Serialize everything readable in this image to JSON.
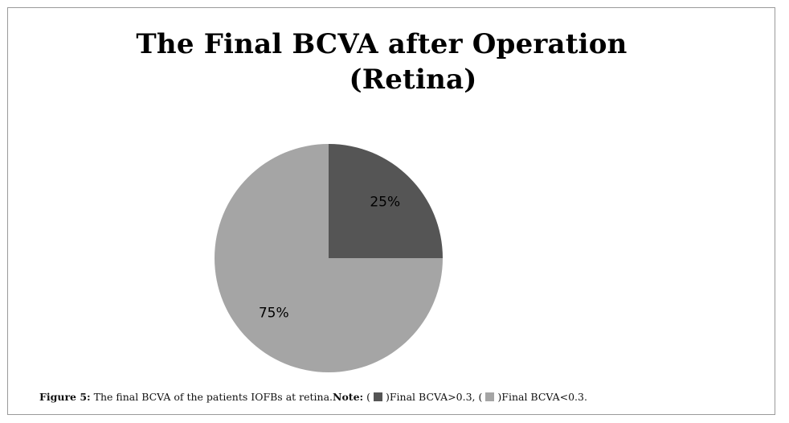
{
  "chart_data": {
    "type": "pie",
    "title_line1": "The Final BCVA after Operation",
    "title_line2": "(Retina)",
    "slices": [
      {
        "label": "25%",
        "value": 25,
        "color": "#555555"
      },
      {
        "label": "75%",
        "value": 75,
        "color": "#a5a5a5"
      }
    ]
  },
  "caption": {
    "figure_label": "Figure 5:",
    "text": " The final BCVA of the patients IOFBs at retina.",
    "note_label": "Note:",
    "open_paren_1": " (",
    "legend_1": ")Final BCVA>0.3, (",
    "legend_2": ")Final BCVA<0.3."
  }
}
